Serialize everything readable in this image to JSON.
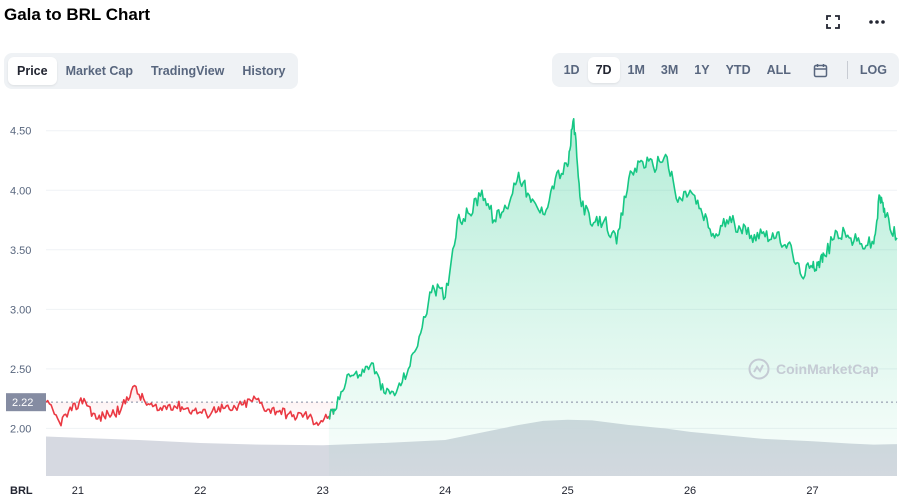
{
  "header": {
    "title": "Gala to BRL Chart",
    "expand_icon": "expand-icon",
    "more_icon": "more-horizontal-icon"
  },
  "tabs": [
    {
      "label": "Price",
      "active": true
    },
    {
      "label": "Market Cap",
      "active": false
    },
    {
      "label": "TradingView",
      "active": false
    },
    {
      "label": "History",
      "active": false
    }
  ],
  "ranges": [
    {
      "label": "1D",
      "active": false
    },
    {
      "label": "7D",
      "active": true
    },
    {
      "label": "1M",
      "active": false
    },
    {
      "label": "3M",
      "active": false
    },
    {
      "label": "1Y",
      "active": false
    },
    {
      "label": "YTD",
      "active": false
    },
    {
      "label": "ALL",
      "active": false
    }
  ],
  "log_label": "LOG",
  "calendar_icon": "calendar-icon",
  "watermark": "CoinMarketCap",
  "colors": {
    "up": "#16c784",
    "down": "#ea3943",
    "volume": "#d1d5de",
    "label_bg": "#858ca2"
  },
  "chart_data": {
    "type": "line",
    "currency_label": "BRL",
    "y_ticks": [
      "4.50",
      "4.00",
      "3.50",
      "3.00",
      "2.50",
      "2.00"
    ],
    "ylim": [
      1.6,
      4.8
    ],
    "x_ticks": [
      "21",
      "22",
      "23",
      "24",
      "25",
      "26",
      "27"
    ],
    "x_tick_days": [
      21,
      22,
      23,
      24,
      25,
      26,
      27
    ],
    "xlim": [
      20.74,
      27.69
    ],
    "reference_value": 2.22,
    "reference_label": "2.22",
    "price_series": {
      "x": [
        20.74,
        20.85,
        20.95,
        21.05,
        21.15,
        21.25,
        21.35,
        21.45,
        21.55,
        21.65,
        21.75,
        21.85,
        21.95,
        22.05,
        22.15,
        22.25,
        22.35,
        22.45,
        22.55,
        22.65,
        22.75,
        22.85,
        22.95,
        23.05,
        23.1,
        23.2,
        23.3,
        23.4,
        23.5,
        23.6,
        23.7,
        23.8,
        23.9,
        24.0,
        24.1,
        24.2,
        24.3,
        24.4,
        24.5,
        24.6,
        24.7,
        24.8,
        24.9,
        25.0,
        25.05,
        25.1,
        25.2,
        25.3,
        25.4,
        25.5,
        25.6,
        25.7,
        25.8,
        25.9,
        26.0,
        26.1,
        26.2,
        26.3,
        26.4,
        26.5,
        26.6,
        26.7,
        26.8,
        26.9,
        27.0,
        27.05,
        27.1,
        27.2,
        27.3,
        27.4,
        27.5,
        27.55,
        27.6,
        27.69
      ],
      "values": [
        2.22,
        2.05,
        2.15,
        2.25,
        2.08,
        2.12,
        2.15,
        2.35,
        2.22,
        2.15,
        2.2,
        2.18,
        2.15,
        2.12,
        2.18,
        2.15,
        2.2,
        2.25,
        2.16,
        2.15,
        2.1,
        2.12,
        2.05,
        2.1,
        2.15,
        2.45,
        2.45,
        2.55,
        2.3,
        2.3,
        2.5,
        2.8,
        3.2,
        3.1,
        3.75,
        3.8,
        4.0,
        3.75,
        3.85,
        4.15,
        3.9,
        3.8,
        4.1,
        4.2,
        4.6,
        3.95,
        3.7,
        3.75,
        3.55,
        4.1,
        4.25,
        4.2,
        4.3,
        3.9,
        4.0,
        3.8,
        3.6,
        3.75,
        3.7,
        3.62,
        3.65,
        3.6,
        3.55,
        3.3,
        3.35,
        3.4,
        3.45,
        3.65,
        3.6,
        3.55,
        3.55,
        3.95,
        3.78,
        3.6
      ],
      "down_until": 23.1
    },
    "volume_series": {
      "x": [
        20.74,
        21.0,
        21.5,
        22.0,
        22.5,
        23.0,
        23.5,
        24.0,
        24.3,
        24.6,
        24.8,
        25.0,
        25.2,
        25.5,
        25.8,
        26.0,
        26.3,
        26.6,
        27.0,
        27.3,
        27.5,
        27.69
      ],
      "values": [
        0.68,
        0.66,
        0.62,
        0.57,
        0.54,
        0.53,
        0.57,
        0.62,
        0.75,
        0.88,
        0.95,
        0.97,
        0.96,
        0.88,
        0.82,
        0.76,
        0.7,
        0.64,
        0.6,
        0.56,
        0.54,
        0.55
      ]
    }
  }
}
